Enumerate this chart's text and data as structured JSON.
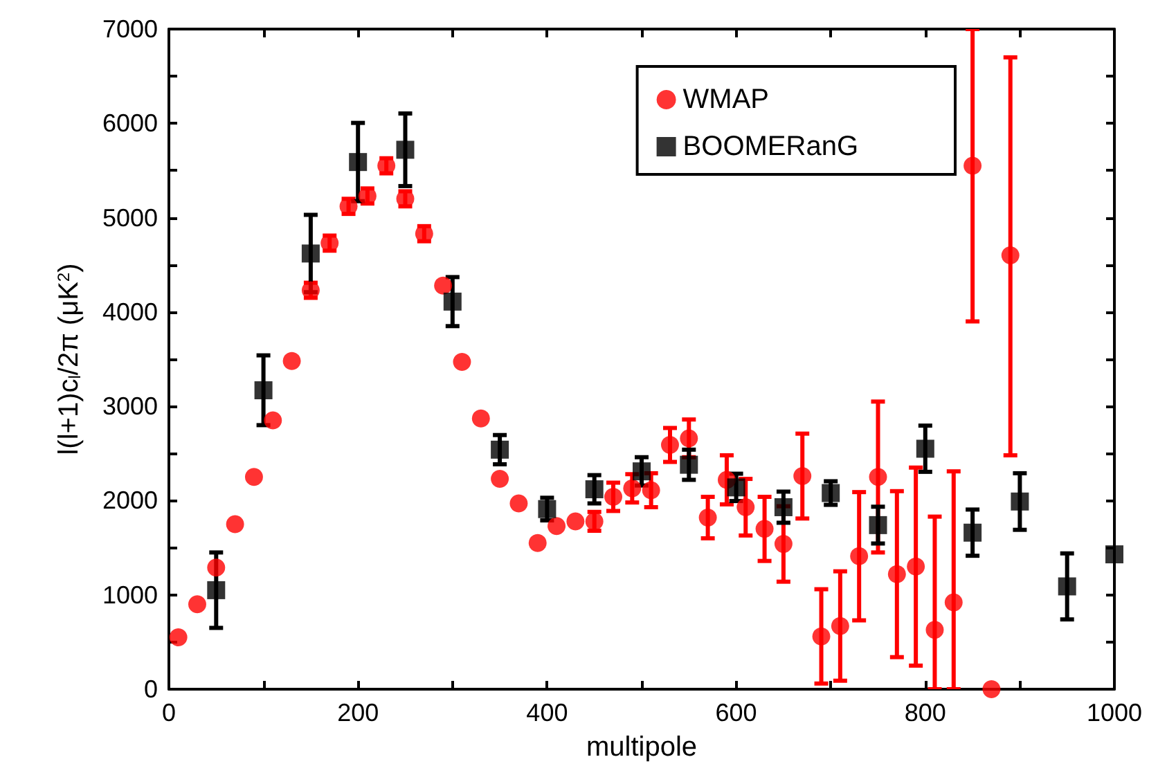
{
  "chart_data": {
    "type": "scatter",
    "xlabel": "multipole",
    "ylabel": "l(l+1)c$_{l}$/2π (μK$^{2}$)",
    "xlim": [
      0,
      1000
    ],
    "xticks": [
      0,
      200,
      400,
      600,
      800,
      1000
    ],
    "ylim": [
      0,
      7000
    ],
    "yticks": [
      0,
      1000,
      2000,
      3000,
      4000,
      5000,
      6000,
      7000
    ],
    "grid": false,
    "legend": "top right",
    "series": [
      {
        "name": "WMAP",
        "color": "#ff0000",
        "marker": "circle",
        "x": [
          10,
          30,
          50,
          70,
          90,
          110,
          130,
          150,
          170,
          190,
          210,
          230,
          250,
          270,
          290,
          310,
          330,
          350,
          370,
          390,
          410,
          430,
          450,
          470,
          490,
          510,
          530,
          550,
          570,
          590,
          610,
          630,
          650,
          670,
          690,
          710,
          730,
          750,
          770,
          790,
          810,
          830,
          850,
          870,
          890
        ],
        "values": [
          550,
          900,
          1290,
          1750,
          2250,
          2850,
          3480,
          4230,
          4730,
          5120,
          5230,
          5550,
          5200,
          4830,
          4280,
          3470,
          2870,
          2230,
          1970,
          1550,
          1730,
          1780,
          1780,
          2040,
          2130,
          2110,
          2590,
          2660,
          1820,
          2220,
          1930,
          1700,
          1540,
          2260,
          560,
          670,
          1410,
          2250,
          1220,
          1300,
          630,
          920,
          5550,
          0,
          4600
        ],
        "errors": [
          null,
          null,
          null,
          null,
          null,
          null,
          null,
          80,
          80,
          80,
          80,
          80,
          80,
          80,
          null,
          null,
          null,
          null,
          null,
          null,
          null,
          null,
          100,
          150,
          150,
          180,
          180,
          200,
          220,
          260,
          300,
          340,
          400,
          450,
          500,
          580,
          680,
          800,
          880,
          1050,
          [
            0,
            1830
          ],
          [
            0,
            2310
          ],
          [
            3900,
            7000
          ],
          null,
          [
            2480,
            6700
          ]
        ]
      },
      {
        "name": "BOOMERanG",
        "color": "#000000",
        "marker": "square",
        "x": [
          50,
          100,
          150,
          200,
          250,
          300,
          350,
          400,
          450,
          500,
          550,
          600,
          650,
          700,
          750,
          800,
          850,
          900,
          950,
          1000
        ],
        "values": [
          1050,
          3170,
          4620,
          5590,
          5720,
          4110,
          2540,
          1910,
          2120,
          2310,
          2380,
          2140,
          1930,
          2080,
          1740,
          2550,
          1660,
          1990,
          1090,
          1430
        ],
        "errors": [
          400,
          370,
          410,
          415,
          385,
          260,
          155,
          120,
          150,
          150,
          160,
          145,
          165,
          125,
          195,
          245,
          245,
          300,
          350,
          null
        ]
      }
    ]
  }
}
